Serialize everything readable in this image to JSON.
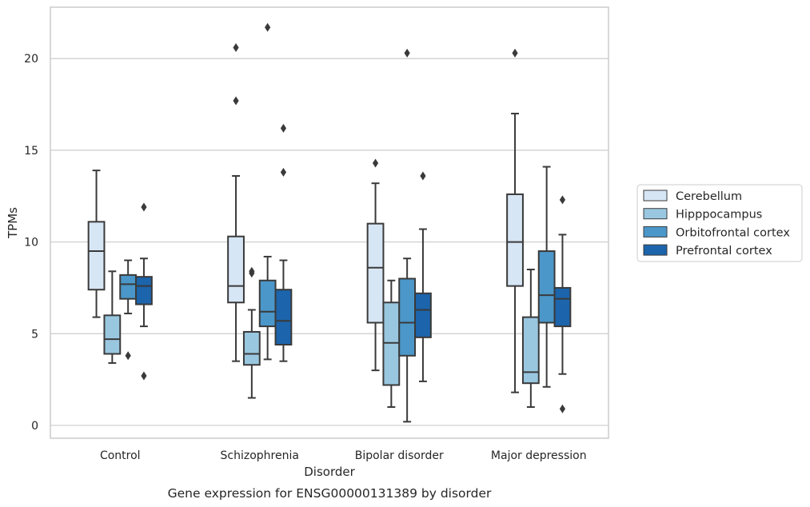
{
  "chart_data": {
    "type": "boxplot",
    "title": "",
    "caption": "Gene expression for ENSG00000131389 by disorder",
    "xlabel": "Disorder",
    "ylabel": "TPMs",
    "ylim": [
      -0.7,
      22.8
    ],
    "yticks": [
      0,
      5,
      10,
      15,
      20
    ],
    "grid": "horizontal",
    "legend_position": "right",
    "categories": [
      "Control",
      "Schizophrenia",
      "Bipolar disorder",
      "Major depression"
    ],
    "colors": {
      "Cerebellum": "#d7e6f5",
      "Hipppocampus": "#9ac7e0",
      "Orbitofrontal cortex": "#4b97c9",
      "Prefrontal cortex": "#1c64ab",
      "edge": "#3a3a3a",
      "grid": "#cccccc"
    },
    "series": [
      {
        "name": "Cerebellum",
        "boxes": [
          {
            "whislo": 5.9,
            "q1": 7.4,
            "med": 9.5,
            "q3": 11.1,
            "whishi": 13.9,
            "fliers": []
          },
          {
            "whislo": 3.5,
            "q1": 6.7,
            "med": 7.6,
            "q3": 10.3,
            "whishi": 13.6,
            "fliers": [
              17.7,
              20.6
            ]
          },
          {
            "whislo": 3.0,
            "q1": 5.6,
            "med": 8.6,
            "q3": 11.0,
            "whishi": 13.2,
            "fliers": [
              14.3
            ]
          },
          {
            "whislo": 1.8,
            "q1": 7.6,
            "med": 10.0,
            "q3": 12.6,
            "whishi": 17.0,
            "fliers": [
              20.3
            ]
          }
        ]
      },
      {
        "name": "Hipppocampus",
        "boxes": [
          {
            "whislo": 3.4,
            "q1": 3.9,
            "med": 4.7,
            "q3": 6.0,
            "whishi": 8.4,
            "fliers": []
          },
          {
            "whislo": 1.5,
            "q1": 3.3,
            "med": 3.9,
            "q3": 5.1,
            "whishi": 6.3,
            "fliers": [
              8.3,
              8.4
            ]
          },
          {
            "whislo": 1.0,
            "q1": 2.2,
            "med": 4.5,
            "q3": 6.7,
            "whishi": 7.9,
            "fliers": []
          },
          {
            "whislo": 1.0,
            "q1": 2.3,
            "med": 2.9,
            "q3": 5.9,
            "whishi": 8.5,
            "fliers": []
          }
        ]
      },
      {
        "name": "Orbitofrontal cortex",
        "boxes": [
          {
            "whislo": 6.1,
            "q1": 6.9,
            "med": 7.7,
            "q3": 8.2,
            "whishi": 9.0,
            "fliers": [
              3.8
            ]
          },
          {
            "whislo": 3.6,
            "q1": 5.4,
            "med": 6.2,
            "q3": 7.9,
            "whishi": 9.2,
            "fliers": [
              21.7
            ]
          },
          {
            "whislo": 0.2,
            "q1": 3.8,
            "med": 5.6,
            "q3": 8.0,
            "whishi": 9.1,
            "fliers": [
              20.3
            ]
          },
          {
            "whislo": 2.1,
            "q1": 5.6,
            "med": 7.1,
            "q3": 9.5,
            "whishi": 14.1,
            "fliers": []
          }
        ]
      },
      {
        "name": "Prefrontal cortex",
        "boxes": [
          {
            "whislo": 5.4,
            "q1": 6.6,
            "med": 7.6,
            "q3": 8.1,
            "whishi": 9.1,
            "fliers": [
              11.9,
              2.7
            ]
          },
          {
            "whislo": 3.5,
            "q1": 4.4,
            "med": 5.7,
            "q3": 7.4,
            "whishi": 9.0,
            "fliers": [
              13.8,
              16.2
            ]
          },
          {
            "whislo": 2.4,
            "q1": 4.8,
            "med": 6.3,
            "q3": 7.2,
            "whishi": 10.7,
            "fliers": [
              13.6
            ]
          },
          {
            "whislo": 2.8,
            "q1": 5.4,
            "med": 6.9,
            "q3": 7.5,
            "whishi": 10.4,
            "fliers": [
              12.3,
              0.9
            ]
          }
        ]
      }
    ]
  }
}
